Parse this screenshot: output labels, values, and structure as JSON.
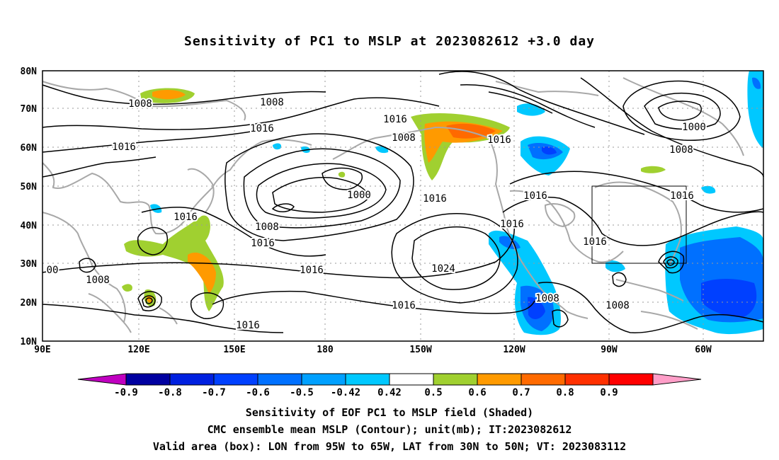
{
  "title": "Sensitivity of PC1 to MSLP at 2023082612 +3.0 day",
  "lat_labels": [
    "80N",
    "70N",
    "60N",
    "50N",
    "40N",
    "30N",
    "20N",
    "10N"
  ],
  "lon_labels": [
    "90E",
    "120E",
    "150E",
    "180",
    "150W",
    "120W",
    "90W",
    "60W"
  ],
  "colorbar": {
    "labels": [
      "-0.9",
      "-0.8",
      "-0.7",
      "-0.6",
      "-0.5",
      "-0.42",
      "0.42",
      "0.5",
      "0.6",
      "0.7",
      "0.8",
      "0.9"
    ],
    "colors": [
      "#c000c0",
      "#0000a0",
      "#0020e0",
      "#0040ff",
      "#0070ff",
      "#00a0ff",
      "#00c8ff",
      "#ffffff",
      "#a0d030",
      "#ff9a00",
      "#ff6a00",
      "#ff3000",
      "#ff0000",
      "#ff9ec8"
    ]
  },
  "contour_labels": [
    {
      "text": "1008"
    },
    {
      "text": "1008"
    },
    {
      "text": "1016"
    },
    {
      "text": "1016"
    },
    {
      "text": "1016"
    },
    {
      "text": "1008"
    },
    {
      "text": "1016"
    },
    {
      "text": "1000"
    },
    {
      "text": "1016"
    },
    {
      "text": "1016"
    },
    {
      "text": "1000"
    },
    {
      "text": "1008"
    },
    {
      "text": "1016"
    },
    {
      "text": "1016"
    },
    {
      "text": "1008"
    },
    {
      "text": "1016"
    },
    {
      "text": "1016"
    },
    {
      "text": "1016"
    },
    {
      "text": "1024"
    },
    {
      "text": "1016"
    },
    {
      "text": "1008"
    },
    {
      "text": "1008"
    },
    {
      "text": "1008"
    },
    {
      "text": "1016"
    },
    {
      "text": "1016"
    },
    {
      "text": "00"
    }
  ],
  "footer": [
    "Sensitivity of EOF PC1 to MSLP field (Shaded)",
    "CMC ensemble mean MSLP (Contour); unit(mb); IT:2023082612",
    "Valid area (box): LON from 95W to 65W, LAT from 30N to 50N; VT: 2023083112"
  ],
  "valid_area": {
    "lon_min": "95W",
    "lon_max": "65W",
    "lat_min": "30N",
    "lat_max": "50N"
  }
}
